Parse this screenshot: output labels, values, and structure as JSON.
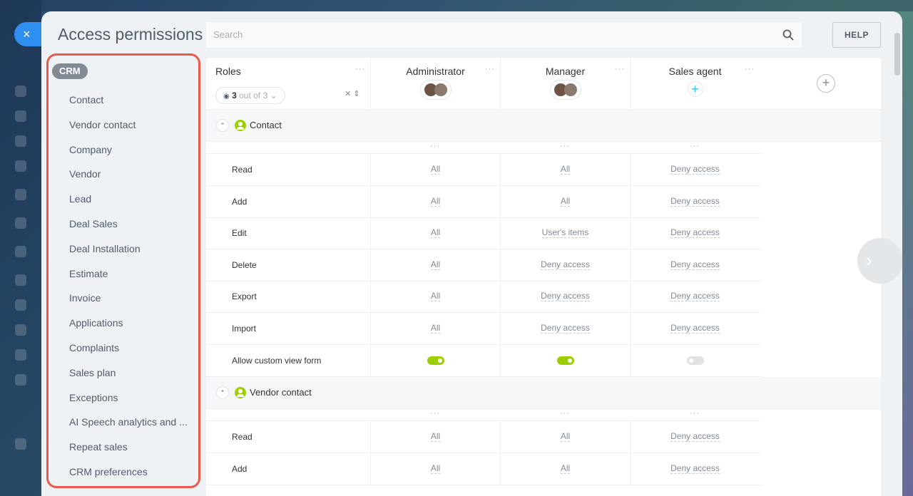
{
  "window": {
    "title": "Access permissions",
    "close_label": "×",
    "help_label": "HELP"
  },
  "search": {
    "placeholder": "Search"
  },
  "menu": {
    "group": "CRM",
    "items": [
      "Contact",
      "Vendor contact",
      "Company",
      "Vendor",
      "Lead",
      "Deal Sales",
      "Deal Installation",
      "Estimate",
      "Invoice",
      "Applications",
      "Complaints",
      "Sales plan",
      "Exceptions",
      "AI Speech analytics and ...",
      "Repeat sales",
      "CRM preferences"
    ]
  },
  "roles": {
    "label": "Roles",
    "filter_count": "3",
    "filter_suffix": "out of 3",
    "columns": [
      {
        "name": "Administrator",
        "has_avatars": true
      },
      {
        "name": "Manager",
        "has_avatars": true
      },
      {
        "name": "Sales agent",
        "has_avatars": false
      }
    ]
  },
  "sections": [
    {
      "title": "Contact",
      "rows": [
        {
          "name": "Read",
          "values": [
            "All",
            "All",
            "Deny access"
          ]
        },
        {
          "name": "Add",
          "values": [
            "All",
            "All",
            "Deny access"
          ]
        },
        {
          "name": "Edit",
          "values": [
            "All",
            "User's items",
            "Deny access"
          ]
        },
        {
          "name": "Delete",
          "values": [
            "All",
            "Deny access",
            "Deny access"
          ]
        },
        {
          "name": "Export",
          "values": [
            "All",
            "Deny access",
            "Deny access"
          ]
        },
        {
          "name": "Import",
          "values": [
            "All",
            "Deny access",
            "Deny access"
          ]
        },
        {
          "name": "Allow custom view form",
          "toggles": [
            true,
            true,
            false
          ]
        }
      ]
    },
    {
      "title": "Vendor contact",
      "rows": [
        {
          "name": "Read",
          "values": [
            "All",
            "All",
            "Deny access"
          ]
        },
        {
          "name": "Add",
          "values": [
            "All",
            "All",
            "Deny access"
          ]
        }
      ]
    }
  ],
  "colors": {
    "accent": "#2f8ff0",
    "toggle_on": "#9dcf00",
    "highlight_border": "#ea5a4c"
  }
}
